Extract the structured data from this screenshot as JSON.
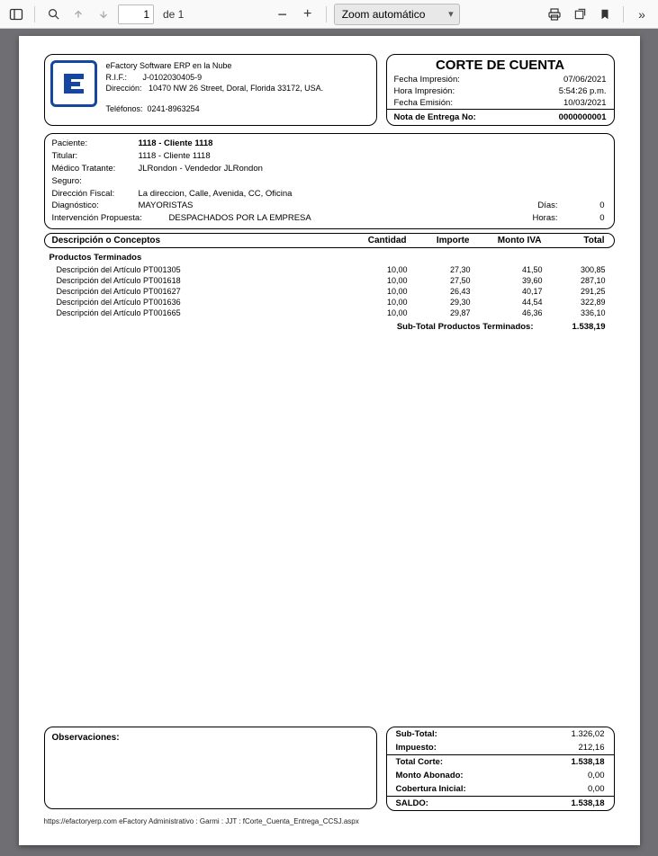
{
  "toolbar": {
    "page_current": "1",
    "page_of_label": "de 1",
    "zoom_label": "Zoom automático"
  },
  "company": {
    "name": "eFactory Software ERP en la Nube",
    "rif_label": "R.I.F.:",
    "rif": "J-0102030405-9",
    "dir_label": "Dirección:",
    "dir": "10470 NW 26 Street, Doral, Florida 33172, USA.",
    "tel_label": "Teléfonos:",
    "tel": "0241-8963254"
  },
  "titlebox": {
    "title": "CORTE DE CUENTA",
    "fecha_imp_lbl": "Fecha Impresión:",
    "fecha_imp": "07/06/2021",
    "hora_imp_lbl": "Hora Impresión:",
    "hora_imp": "5:54:26 p.m.",
    "fecha_emi_lbl": "Fecha Emisión:",
    "fecha_emi": "10/03/2021",
    "nota_lbl": "Nota de Entrega No:",
    "nota_no": "0000000001"
  },
  "patient": {
    "paciente_lbl": "Paciente:",
    "paciente": "1118 - Cliente 1118",
    "titular_lbl": "Titular:",
    "titular": "1118 - Cliente 1118",
    "medico_lbl": "Médico Tratante:",
    "medico": "JLRondon - Vendedor JLRondon",
    "seguro_lbl": "Seguro:",
    "dirf_lbl": "Dirección Fiscal:",
    "dirf": "La direccion, Calle, Avenida, CC, Oficina",
    "diag_lbl": "Diagnóstico:",
    "diag": "MAYORISTAS",
    "dias_lbl": "Días:",
    "dias": "0",
    "interv_lbl": "Intervención Propuesta:",
    "interv": "DESPACHADOS POR LA EMPRESA",
    "horas_lbl": "Horas:",
    "horas": "0"
  },
  "table": {
    "h_desc": "Descripción o Conceptos",
    "h_qty": "Cantidad",
    "h_imp": "Importe",
    "h_iva": "Monto IVA",
    "h_tot": "Total",
    "section": "Productos Terminados",
    "rows": [
      {
        "desc": "Descripción del Artículo PT001305",
        "qty": "10,00",
        "imp": "27,30",
        "iva": "41,50",
        "tot": "300,85"
      },
      {
        "desc": "Descripción del Artículo PT001618",
        "qty": "10,00",
        "imp": "27,50",
        "iva": "39,60",
        "tot": "287,10"
      },
      {
        "desc": "Descripción del Artículo PT001627",
        "qty": "10,00",
        "imp": "26,43",
        "iva": "40,17",
        "tot": "291,25"
      },
      {
        "desc": "Descripción del Artículo PT001636",
        "qty": "10,00",
        "imp": "29,30",
        "iva": "44,54",
        "tot": "322,89"
      },
      {
        "desc": "Descripción del Artículo PT001665",
        "qty": "10,00",
        "imp": "29,87",
        "iva": "46,36",
        "tot": "336,10"
      }
    ],
    "subtotal_lbl": "Sub-Total Productos Terminados:",
    "subtotal_val": "1.538,19"
  },
  "obs": {
    "label": "Observaciones:"
  },
  "totals": {
    "sub_lbl": "Sub-Total:",
    "sub": "1.326,02",
    "imp_lbl": "Impuesto:",
    "imp": "212,16",
    "totcorte_lbl": "Total Corte:",
    "totcorte": "1.538,18",
    "abon_lbl": "Monto Abonado:",
    "abon": "0,00",
    "cob_lbl": "Cobertura Inicial:",
    "cob": "0,00",
    "saldo_lbl": "SALDO:",
    "saldo": "1.538,18"
  },
  "footer": "https://efactoryerp.com       eFactory Administrativo : Garmi : JJT : fCorte_Cuenta_Entrega_CCSJ.aspx"
}
